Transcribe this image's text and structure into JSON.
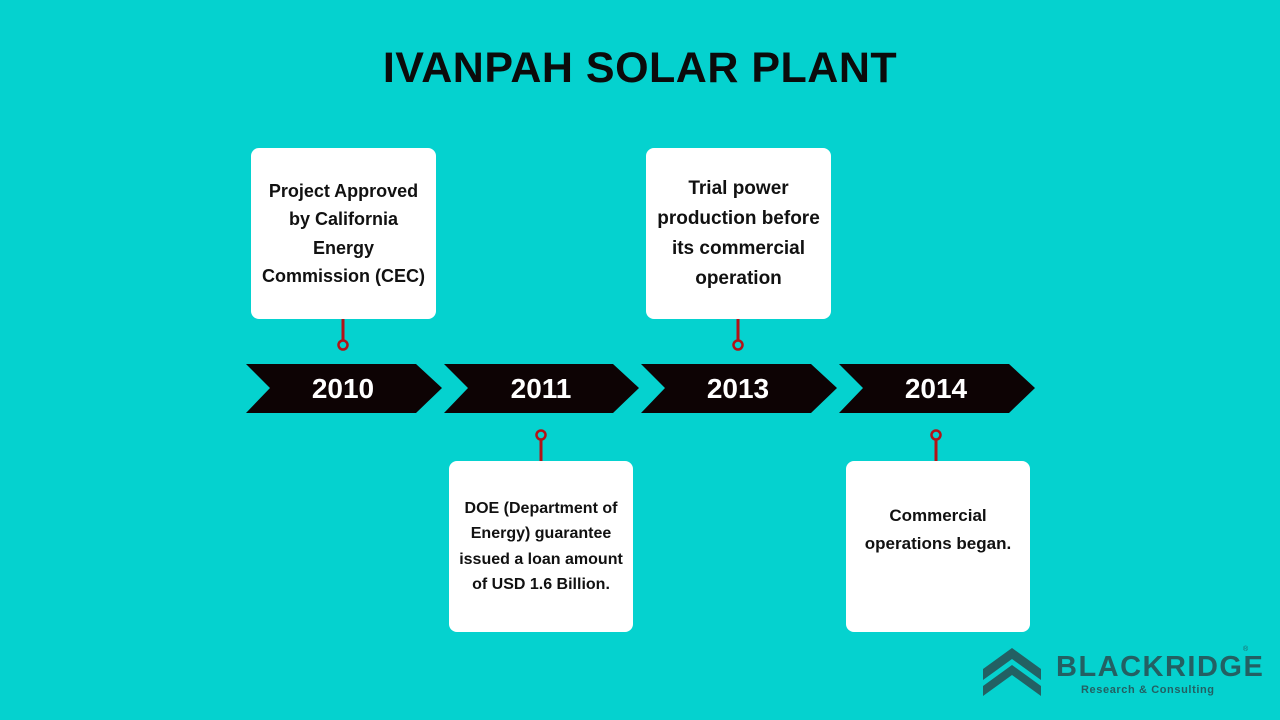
{
  "title": "IVANPAH SOLAR PLANT",
  "timeline": [
    {
      "year": "2010",
      "text": "Project Approved by California Energy Commission (CEC)"
    },
    {
      "year": "2011",
      "text": "DOE (Department of Energy) guarantee issued a loan amount of USD 1.6 Billion."
    },
    {
      "year": "2013",
      "text": "Trial power production before its commercial operation"
    },
    {
      "year": "2014",
      "text": "Commercial operations began."
    }
  ],
  "colors": {
    "background": "#05d2cf",
    "arrow": "#0d0304",
    "connector": "#b31217",
    "card": "#ffffff",
    "logo": "#236063"
  },
  "logo": {
    "name": "BLACKRIDGE",
    "tagline": "Research & Consulting",
    "icon": "house-roof-icon",
    "mark": "®"
  }
}
